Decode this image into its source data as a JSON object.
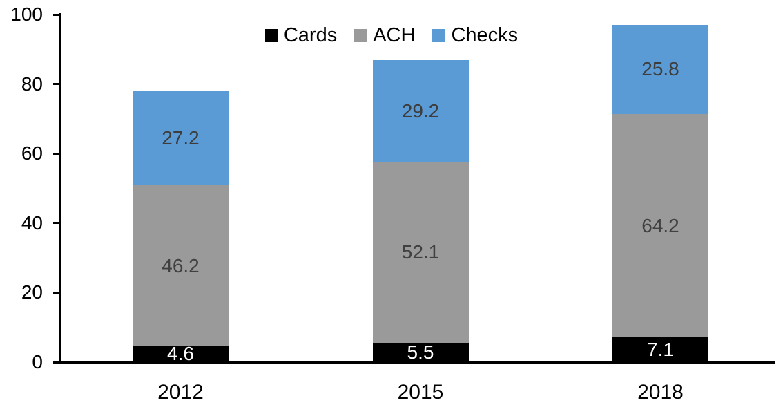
{
  "chart_data": {
    "type": "bar",
    "stacked": true,
    "title": "",
    "xlabel": "",
    "ylabel": "",
    "categories": [
      "2012",
      "2015",
      "2018"
    ],
    "series": [
      {
        "name": "Cards",
        "color": "#000000",
        "label_color": "#ffffff",
        "values": [
          4.6,
          5.5,
          7.1
        ]
      },
      {
        "name": "ACH",
        "color": "#9a9a9a",
        "label_color": "#404040",
        "values": [
          46.2,
          52.1,
          64.2
        ]
      },
      {
        "name": "Checks",
        "color": "#5b9bd5",
        "label_color": "#3d3d3d",
        "values": [
          27.2,
          29.2,
          25.8
        ]
      }
    ],
    "stack_totals": [
      78.0,
      86.8,
      97.1
    ],
    "ylim": [
      0,
      100
    ],
    "yticks": [
      0,
      20,
      40,
      60,
      80,
      100
    ],
    "legend_position": "top-center",
    "grid": false,
    "axis_color": "#000000",
    "background_color": "#ffffff"
  }
}
